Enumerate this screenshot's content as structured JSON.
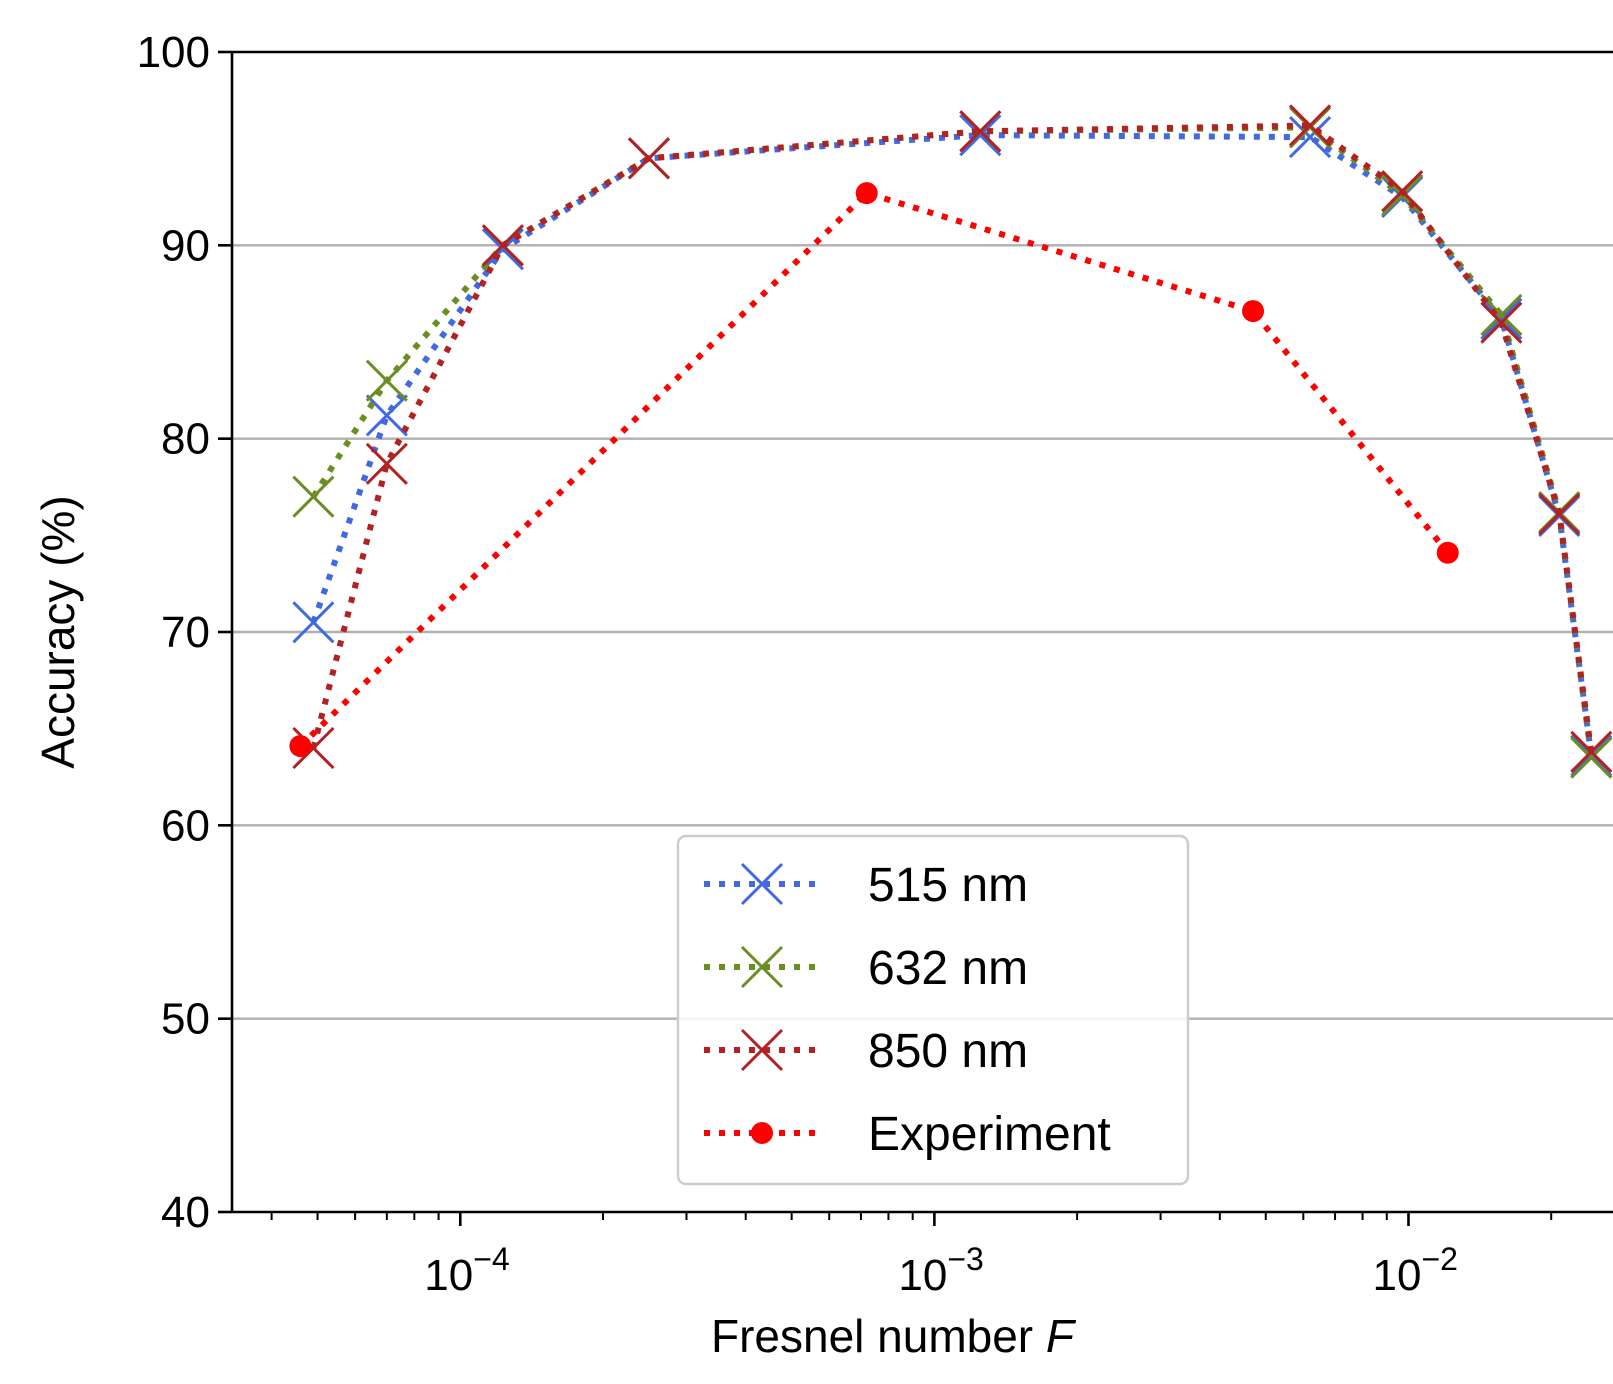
{
  "chart_data": {
    "type": "line",
    "xlabel": "Fresnel number",
    "xlabel_var": "F",
    "ylabel": "Accuracy (%)",
    "xscale": "log",
    "xlim": [
      3.3e-05,
      0.027
    ],
    "ylim": [
      40,
      100
    ],
    "yticks": [
      "40",
      "50",
      "60",
      "70",
      "80",
      "90",
      "100"
    ],
    "xticks": [
      {
        "value": 0.0001,
        "base": "10",
        "exp": "−4"
      },
      {
        "value": 0.001,
        "base": "10",
        "exp": "−3"
      },
      {
        "value": 0.01,
        "base": "10",
        "exp": "−2"
      }
    ],
    "grid": "horizontal",
    "legend_position": "lower center",
    "series": [
      {
        "name": "515 nm",
        "color": "#4169e1",
        "marker": "x",
        "linestyle": "dotted",
        "x": [
          4.9e-05,
          7e-05,
          0.000123,
          0.00025,
          0.00125,
          0.0062,
          0.0097,
          0.0157,
          0.0208,
          0.0243
        ],
        "y": [
          70.5,
          81.2,
          89.8,
          94.5,
          95.7,
          95.6,
          92.5,
          86.2,
          76.0,
          63.6
        ]
      },
      {
        "name": "632 nm",
        "color": "#6b8e23",
        "marker": "x",
        "linestyle": "dotted",
        "x": [
          4.9e-05,
          7e-05,
          0.000123,
          0.00025,
          0.00125,
          0.0062,
          0.0097,
          0.0157,
          0.0208,
          0.0243
        ],
        "y": [
          77.0,
          83.0,
          90.0,
          94.5,
          95.9,
          96.1,
          92.6,
          86.4,
          76.2,
          63.5
        ]
      },
      {
        "name": "850 nm",
        "color": "#b22222",
        "marker": "x",
        "linestyle": "dotted",
        "x": [
          4.9e-05,
          7e-05,
          0.000123,
          0.00025,
          0.00125,
          0.0062,
          0.0097,
          0.0157,
          0.0208,
          0.0243
        ],
        "y": [
          64.0,
          78.7,
          90.0,
          94.5,
          95.9,
          96.2,
          92.8,
          86.0,
          76.1,
          63.8
        ]
      },
      {
        "name": "Experiment",
        "color": "#ff0000",
        "marker": "o",
        "linestyle": "dotted",
        "x": [
          4.6e-05,
          0.00072,
          0.0047,
          0.0121
        ],
        "y": [
          64.1,
          92.7,
          86.6,
          74.1
        ]
      }
    ]
  }
}
